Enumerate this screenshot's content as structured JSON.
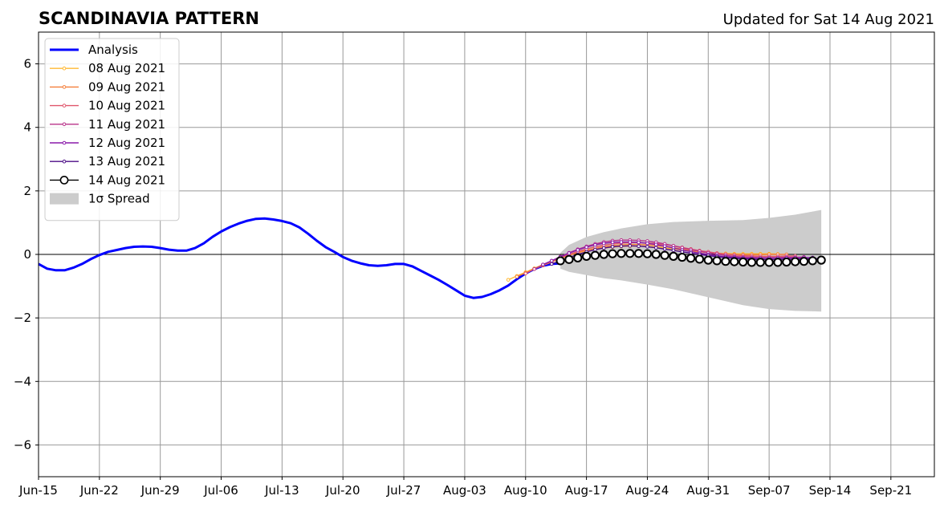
{
  "chart_data": {
    "type": "line",
    "title": "SCANDINAVIA PATTERN",
    "subtitle": "Updated for Sat 14 Aug 2021",
    "xlabel": "",
    "ylabel": "",
    "xlim": [
      "2021-06-15",
      "2021-09-26"
    ],
    "ylim": [
      -7,
      7
    ],
    "grid": true,
    "legend_position": "top-left",
    "x_ticks": [
      "2021-06-15",
      "2021-06-22",
      "2021-06-29",
      "2021-07-06",
      "2021-07-13",
      "2021-07-20",
      "2021-07-27",
      "2021-08-03",
      "2021-08-10",
      "2021-08-17",
      "2021-08-24",
      "2021-08-31",
      "2021-09-07",
      "2021-09-14",
      "2021-09-21"
    ],
    "x_tick_labels": [
      "Jun-15",
      "Jun-22",
      "Jun-29",
      "Jul-06",
      "Jul-13",
      "Jul-20",
      "Jul-27",
      "Aug-03",
      "Aug-10",
      "Aug-17",
      "Aug-24",
      "Aug-31",
      "Sep-07",
      "Sep-14",
      "Sep-21"
    ],
    "y_ticks": [
      -6,
      -4,
      -2,
      0,
      2,
      4,
      6
    ],
    "y_tick_labels": [
      "−6",
      "−4",
      "−2",
      "0",
      "2",
      "4",
      "6"
    ],
    "series": [
      {
        "name": "Analysis",
        "color": "#0000ff",
        "x": [
          "2021-06-15",
          "2021-06-16",
          "2021-06-17",
          "2021-06-18",
          "2021-06-19",
          "2021-06-20",
          "2021-06-21",
          "2021-06-22",
          "2021-06-23",
          "2021-06-24",
          "2021-06-25",
          "2021-06-26",
          "2021-06-27",
          "2021-06-28",
          "2021-06-29",
          "2021-06-30",
          "2021-07-01",
          "2021-07-02",
          "2021-07-03",
          "2021-07-04",
          "2021-07-05",
          "2021-07-06",
          "2021-07-07",
          "2021-07-08",
          "2021-07-09",
          "2021-07-10",
          "2021-07-11",
          "2021-07-12",
          "2021-07-13",
          "2021-07-14",
          "2021-07-15",
          "2021-07-16",
          "2021-07-17",
          "2021-07-18",
          "2021-07-19",
          "2021-07-20",
          "2021-07-21",
          "2021-07-22",
          "2021-07-23",
          "2021-07-24",
          "2021-07-25",
          "2021-07-26",
          "2021-07-27",
          "2021-07-28",
          "2021-07-29",
          "2021-07-30",
          "2021-07-31",
          "2021-08-01",
          "2021-08-02",
          "2021-08-03",
          "2021-08-04",
          "2021-08-05",
          "2021-08-06",
          "2021-08-07",
          "2021-08-08",
          "2021-08-09",
          "2021-08-10",
          "2021-08-11",
          "2021-08-12",
          "2021-08-13",
          "2021-08-14"
        ],
        "values": [
          -0.3,
          -0.45,
          -0.5,
          -0.5,
          -0.42,
          -0.3,
          -0.15,
          -0.02,
          0.08,
          0.14,
          0.2,
          0.24,
          0.25,
          0.24,
          0.2,
          0.15,
          0.12,
          0.12,
          0.2,
          0.35,
          0.55,
          0.72,
          0.86,
          0.97,
          1.06,
          1.12,
          1.13,
          1.1,
          1.05,
          0.98,
          0.85,
          0.65,
          0.43,
          0.23,
          0.08,
          -0.08,
          -0.2,
          -0.28,
          -0.34,
          -0.36,
          -0.34,
          -0.3,
          -0.3,
          -0.38,
          -0.52,
          -0.66,
          -0.8,
          -0.96,
          -1.13,
          -1.3,
          -1.37,
          -1.34,
          -1.25,
          -1.13,
          -0.98,
          -0.78,
          -0.6,
          -0.46,
          -0.36,
          -0.3,
          -0.28
        ]
      },
      {
        "name": "08 Aug 2021",
        "color": "#ffb833",
        "x": [
          "2021-08-08",
          "2021-08-09",
          "2021-08-10",
          "2021-08-11",
          "2021-08-12",
          "2021-08-13",
          "2021-08-14",
          "2021-08-15",
          "2021-08-16",
          "2021-08-17",
          "2021-08-18",
          "2021-08-19",
          "2021-08-20",
          "2021-08-21",
          "2021-08-22",
          "2021-08-23",
          "2021-08-24",
          "2021-08-25",
          "2021-08-26",
          "2021-08-27",
          "2021-08-28",
          "2021-08-29",
          "2021-08-30",
          "2021-08-31",
          "2021-09-01",
          "2021-09-02",
          "2021-09-03",
          "2021-09-04",
          "2021-09-05",
          "2021-09-06",
          "2021-09-07",
          "2021-09-08"
        ],
        "values": [
          -0.8,
          -0.68,
          -0.56,
          -0.44,
          -0.32,
          -0.21,
          -0.11,
          -0.02,
          0.05,
          0.11,
          0.16,
          0.2,
          0.23,
          0.25,
          0.26,
          0.26,
          0.25,
          0.23,
          0.2,
          0.17,
          0.14,
          0.11,
          0.08,
          0.06,
          0.04,
          0.03,
          0.02,
          0.02,
          0.02,
          0.02,
          0.02,
          0.01
        ]
      },
      {
        "name": "09 Aug 2021",
        "color": "#f47f3b",
        "x": [
          "2021-08-09",
          "2021-08-10",
          "2021-08-11",
          "2021-08-12",
          "2021-08-13",
          "2021-08-14",
          "2021-08-15",
          "2021-08-16",
          "2021-08-17",
          "2021-08-18",
          "2021-08-19",
          "2021-08-20",
          "2021-08-21",
          "2021-08-22",
          "2021-08-23",
          "2021-08-24",
          "2021-08-25",
          "2021-08-26",
          "2021-08-27",
          "2021-08-28",
          "2021-08-29",
          "2021-08-30",
          "2021-08-31",
          "2021-09-01",
          "2021-09-02",
          "2021-09-03",
          "2021-09-04",
          "2021-09-05",
          "2021-09-06",
          "2021-09-07",
          "2021-09-08",
          "2021-09-09"
        ],
        "values": [
          -0.7,
          -0.58,
          -0.46,
          -0.35,
          -0.24,
          -0.13,
          -0.03,
          0.06,
          0.13,
          0.19,
          0.24,
          0.28,
          0.3,
          0.31,
          0.31,
          0.3,
          0.28,
          0.25,
          0.21,
          0.17,
          0.13,
          0.09,
          0.06,
          0.03,
          0.01,
          0.0,
          -0.01,
          -0.01,
          -0.01,
          0.0,
          0.0,
          0.0
        ]
      },
      {
        "name": "10 Aug 2021",
        "color": "#e0566c",
        "x": [
          "2021-08-10",
          "2021-08-11",
          "2021-08-12",
          "2021-08-13",
          "2021-08-14",
          "2021-08-15",
          "2021-08-16",
          "2021-08-17",
          "2021-08-18",
          "2021-08-19",
          "2021-08-20",
          "2021-08-21",
          "2021-08-22",
          "2021-08-23",
          "2021-08-24",
          "2021-08-25",
          "2021-08-26",
          "2021-08-27",
          "2021-08-28",
          "2021-08-29",
          "2021-08-30",
          "2021-08-31",
          "2021-09-01",
          "2021-09-02",
          "2021-09-03",
          "2021-09-04",
          "2021-09-05",
          "2021-09-06",
          "2021-09-07",
          "2021-09-08",
          "2021-09-09",
          "2021-09-10"
        ],
        "values": [
          -0.6,
          -0.46,
          -0.33,
          -0.21,
          -0.1,
          0.0,
          0.09,
          0.17,
          0.24,
          0.29,
          0.33,
          0.36,
          0.37,
          0.37,
          0.36,
          0.34,
          0.31,
          0.27,
          0.22,
          0.17,
          0.12,
          0.08,
          0.04,
          0.01,
          -0.02,
          -0.04,
          -0.05,
          -0.06,
          -0.06,
          -0.06,
          -0.05,
          -0.05
        ]
      },
      {
        "name": "11 Aug 2021",
        "color": "#b8338a",
        "x": [
          "2021-08-11",
          "2021-08-12",
          "2021-08-13",
          "2021-08-14",
          "2021-08-15",
          "2021-08-16",
          "2021-08-17",
          "2021-08-18",
          "2021-08-19",
          "2021-08-20",
          "2021-08-21",
          "2021-08-22",
          "2021-08-23",
          "2021-08-24",
          "2021-08-25",
          "2021-08-26",
          "2021-08-27",
          "2021-08-28",
          "2021-08-29",
          "2021-08-30",
          "2021-08-31",
          "2021-09-01",
          "2021-09-02",
          "2021-09-03",
          "2021-09-04",
          "2021-09-05",
          "2021-09-06",
          "2021-09-07",
          "2021-09-08",
          "2021-09-09",
          "2021-09-10",
          "2021-09-11"
        ],
        "values": [
          -0.46,
          -0.33,
          -0.2,
          -0.07,
          0.05,
          0.16,
          0.25,
          0.33,
          0.39,
          0.43,
          0.45,
          0.45,
          0.44,
          0.42,
          0.38,
          0.33,
          0.27,
          0.21,
          0.15,
          0.1,
          0.05,
          0.01,
          -0.03,
          -0.06,
          -0.08,
          -0.09,
          -0.1,
          -0.1,
          -0.1,
          -0.09,
          -0.09,
          -0.08
        ]
      },
      {
        "name": "12 Aug 2021",
        "color": "#8a1aaa",
        "x": [
          "2021-08-12",
          "2021-08-13",
          "2021-08-14",
          "2021-08-15",
          "2021-08-16",
          "2021-08-17",
          "2021-08-18",
          "2021-08-19",
          "2021-08-20",
          "2021-08-21",
          "2021-08-22",
          "2021-08-23",
          "2021-08-24",
          "2021-08-25",
          "2021-08-26",
          "2021-08-27",
          "2021-08-28",
          "2021-08-29",
          "2021-08-30",
          "2021-08-31",
          "2021-09-01",
          "2021-09-02",
          "2021-09-03",
          "2021-09-04",
          "2021-09-05",
          "2021-09-06",
          "2021-09-07",
          "2021-09-08",
          "2021-09-09",
          "2021-09-10",
          "2021-09-11",
          "2021-09-12"
        ],
        "values": [
          -0.32,
          -0.2,
          -0.08,
          0.04,
          0.14,
          0.23,
          0.3,
          0.35,
          0.38,
          0.39,
          0.39,
          0.38,
          0.35,
          0.31,
          0.26,
          0.2,
          0.14,
          0.09,
          0.04,
          0.0,
          -0.04,
          -0.07,
          -0.09,
          -0.11,
          -0.12,
          -0.12,
          -0.12,
          -0.12,
          -0.11,
          -0.11,
          -0.1,
          -0.1
        ]
      },
      {
        "name": "13 Aug 2021",
        "color": "#4b0c86",
        "x": [
          "2021-08-13",
          "2021-08-14",
          "2021-08-15",
          "2021-08-16",
          "2021-08-17",
          "2021-08-18",
          "2021-08-19",
          "2021-08-20",
          "2021-08-21",
          "2021-08-22",
          "2021-08-23",
          "2021-08-24",
          "2021-08-25",
          "2021-08-26",
          "2021-08-27",
          "2021-08-28",
          "2021-08-29",
          "2021-08-30",
          "2021-08-31",
          "2021-09-01",
          "2021-09-02",
          "2021-09-03",
          "2021-09-04",
          "2021-09-05",
          "2021-09-06",
          "2021-09-07",
          "2021-09-08",
          "2021-09-09",
          "2021-09-10",
          "2021-09-11",
          "2021-09-12",
          "2021-09-13"
        ],
        "values": [
          -0.3,
          -0.2,
          -0.1,
          0.0,
          0.08,
          0.15,
          0.2,
          0.24,
          0.26,
          0.27,
          0.26,
          0.24,
          0.21,
          0.17,
          0.13,
          0.08,
          0.04,
          0.0,
          -0.04,
          -0.07,
          -0.1,
          -0.12,
          -0.14,
          -0.15,
          -0.16,
          -0.16,
          -0.16,
          -0.15,
          -0.15,
          -0.14,
          -0.14,
          -0.13
        ]
      },
      {
        "name": "14 Aug 2021",
        "color": "#000000",
        "x": [
          "2021-08-14",
          "2021-08-15",
          "2021-08-16",
          "2021-08-17",
          "2021-08-18",
          "2021-08-19",
          "2021-08-20",
          "2021-08-21",
          "2021-08-22",
          "2021-08-23",
          "2021-08-24",
          "2021-08-25",
          "2021-08-26",
          "2021-08-27",
          "2021-08-28",
          "2021-08-29",
          "2021-08-30",
          "2021-08-31",
          "2021-09-01",
          "2021-09-02",
          "2021-09-03",
          "2021-09-04",
          "2021-09-05",
          "2021-09-06",
          "2021-09-07",
          "2021-09-08",
          "2021-09-09",
          "2021-09-10",
          "2021-09-11",
          "2021-09-12",
          "2021-09-13"
        ],
        "values": [
          -0.2,
          -0.16,
          -0.11,
          -0.06,
          -0.03,
          0.0,
          0.02,
          0.03,
          0.03,
          0.03,
          0.02,
          0.0,
          -0.03,
          -0.06,
          -0.09,
          -0.12,
          -0.15,
          -0.18,
          -0.2,
          -0.22,
          -0.23,
          -0.24,
          -0.25,
          -0.25,
          -0.25,
          -0.25,
          -0.24,
          -0.23,
          -0.22,
          -0.2,
          -0.18
        ]
      }
    ],
    "spread": {
      "name": "1σ Spread",
      "color": "#cccccc",
      "x": [
        "2021-08-14",
        "2021-08-15",
        "2021-08-17",
        "2021-08-19",
        "2021-08-21",
        "2021-08-24",
        "2021-08-27",
        "2021-08-31",
        "2021-09-04",
        "2021-09-07",
        "2021-09-10",
        "2021-09-13"
      ],
      "upper": [
        0.05,
        0.3,
        0.55,
        0.7,
        0.82,
        0.95,
        1.02,
        1.06,
        1.08,
        1.15,
        1.25,
        1.4
      ],
      "lower": [
        -0.45,
        -0.55,
        -0.65,
        -0.75,
        -0.82,
        -0.95,
        -1.1,
        -1.35,
        -1.6,
        -1.72,
        -1.78,
        -1.8
      ]
    }
  }
}
